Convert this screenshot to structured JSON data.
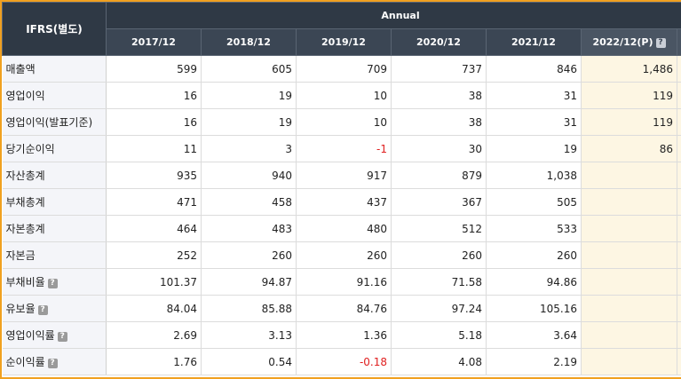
{
  "header": {
    "ifrs": "IFRS(별도)",
    "annual": "Annual",
    "years": [
      "2017/12",
      "2018/12",
      "2019/12",
      "2020/12",
      "2021/12"
    ],
    "projected": "2022/12(P)"
  },
  "rows": [
    {
      "label": "매출액",
      "values": [
        "599",
        "605",
        "709",
        "737",
        "846"
      ],
      "proj": "1,486",
      "info": false
    },
    {
      "label": "영업이익",
      "values": [
        "16",
        "19",
        "10",
        "38",
        "31"
      ],
      "proj": "119",
      "info": false
    },
    {
      "label": "영업이익(발표기준)",
      "values": [
        "16",
        "19",
        "10",
        "38",
        "31"
      ],
      "proj": "119",
      "info": false
    },
    {
      "label": "당기순이익",
      "values": [
        "11",
        "3",
        "-1",
        "30",
        "19"
      ],
      "proj": "86",
      "info": false
    },
    {
      "label": "자산총계",
      "values": [
        "935",
        "940",
        "917",
        "879",
        "1,038"
      ],
      "proj": "",
      "info": false
    },
    {
      "label": "부채총계",
      "values": [
        "471",
        "458",
        "437",
        "367",
        "505"
      ],
      "proj": "",
      "info": false
    },
    {
      "label": "자본총계",
      "values": [
        "464",
        "483",
        "480",
        "512",
        "533"
      ],
      "proj": "",
      "info": false
    },
    {
      "label": "자본금",
      "values": [
        "252",
        "260",
        "260",
        "260",
        "260"
      ],
      "proj": "",
      "info": false
    },
    {
      "label": "부채비율",
      "values": [
        "101.37",
        "94.87",
        "91.16",
        "71.58",
        "94.86"
      ],
      "proj": "",
      "info": true
    },
    {
      "label": "유보율",
      "values": [
        "84.04",
        "85.88",
        "84.76",
        "97.24",
        "105.16"
      ],
      "proj": "",
      "info": true
    },
    {
      "label": "영업이익률",
      "values": [
        "2.69",
        "3.13",
        "1.36",
        "5.18",
        "3.64"
      ],
      "proj": "",
      "info": true
    },
    {
      "label": "순이익률",
      "values": [
        "1.76",
        "0.54",
        "-0.18",
        "4.08",
        "2.19"
      ],
      "proj": "",
      "info": true
    }
  ],
  "colors": {
    "negative": "#e02020",
    "header_bg": "#3b4654",
    "projected_bg": "#fdf6e3",
    "frame": "#f0a020"
  },
  "icons": {
    "info": "help-icon"
  }
}
